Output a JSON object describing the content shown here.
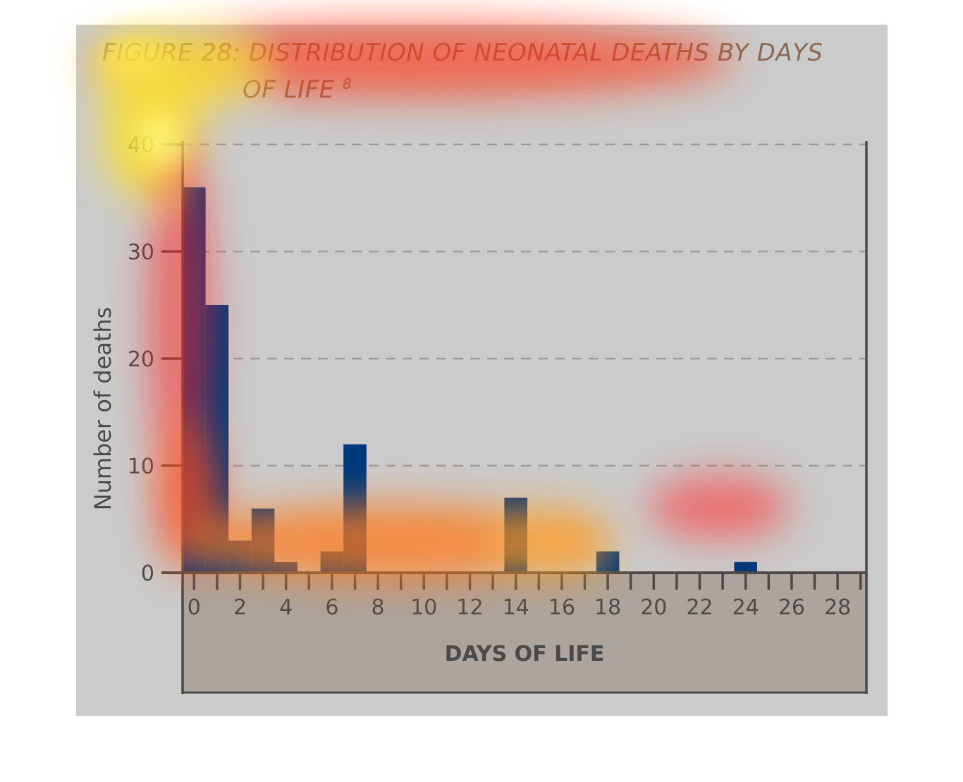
{
  "figure": {
    "title_line1": "FIGURE 28: DISTRIBUTION OF NEONATAL DEATHS BY DAYS",
    "title_line2": "OF LIFE",
    "title_superscript": "8"
  },
  "chart_data": {
    "type": "bar",
    "xlabel": "DAYS OF LIFE",
    "ylabel": "Number of deaths",
    "xlim": [
      0,
      29
    ],
    "ylim": [
      0,
      40
    ],
    "x_ticks": [
      0,
      2,
      4,
      6,
      8,
      10,
      12,
      14,
      16,
      18,
      20,
      22,
      24,
      26,
      28
    ],
    "y_ticks": [
      0,
      10,
      20,
      30,
      40
    ],
    "grid": "horizontal dashed",
    "categories": [
      0,
      1,
      2,
      3,
      4,
      5,
      6,
      7,
      8,
      9,
      10,
      11,
      12,
      13,
      14,
      15,
      16,
      17,
      18,
      19,
      20,
      21,
      22,
      23,
      24,
      25,
      26,
      27,
      28
    ],
    "values": [
      36,
      25,
      3,
      6,
      1,
      0,
      2,
      12,
      0,
      0,
      0,
      0,
      0,
      0,
      7,
      0,
      0,
      0,
      2,
      0,
      0,
      0,
      0,
      0,
      1,
      0,
      0,
      0,
      0
    ],
    "bar_color": "#003a7d",
    "panel_color": "#cbcbcb",
    "axis_color": "#4a4a4a"
  }
}
